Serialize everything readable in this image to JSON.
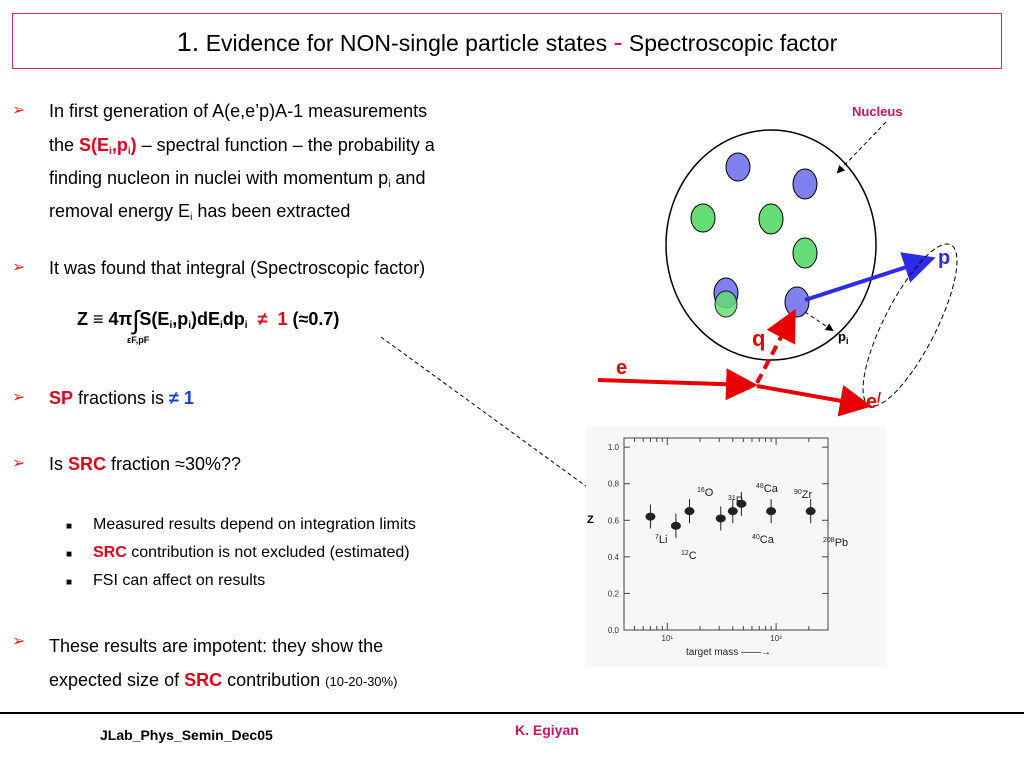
{
  "title": {
    "number": "1.",
    "part1": "Evidence for NON-single particle states",
    "dash": "-",
    "part2": "Spectroscopic factor"
  },
  "bullets": {
    "b1": {
      "line1": "In first generation of A(e,e’p)A-1 measurements",
      "line2_pre": "the ",
      "sfunc": "S(E",
      "sfunc_i1": "i",
      "sfunc_mid": ",p",
      "sfunc_i2": "i",
      "sfunc_end": ")",
      "line2_post": " – spectral function – the probability a",
      "line3_pre": "finding nucleon in nuclei with momentum p",
      "line3_sub": "i",
      "line3_post": " and",
      "line4_pre": "removal energy E",
      "line4_sub": "i",
      "line4_post": " has been extracted"
    },
    "b2": {
      "text": "It was found that integral (Spectroscopic factor)"
    },
    "formula": {
      "lhs": "Z ≡ 4π",
      "integrand": "S(E",
      "s1": "i",
      "mid": ",p",
      "s2": "i",
      "mid2": ")dE",
      "s3": "i",
      "dp": "dp",
      "s4": "i",
      "neq": "≠",
      "one": "1",
      "approx": "(≈0.7)",
      "limits": "εF,pF"
    },
    "b3": {
      "sp": "SP",
      "text": " fractions is ",
      "neq": "≠ 1"
    },
    "b4": {
      "pre": "Is ",
      "src": "SRC",
      "post": " fraction ≈30%??"
    },
    "sub1": "Measured results depend on integration limits",
    "sub2": {
      "src": "SRC",
      "post": " contribution is not excluded (estimated)"
    },
    "sub3": "FSI can affect on results",
    "b5": {
      "line1": "These results are impotent: they show the",
      "line2_pre": "expected size of ",
      "src": "SRC",
      "line2_post": " contribution ",
      "small": "(10-20-30%)"
    }
  },
  "diagram": {
    "nucleus_label": "Nucleus",
    "p_label": "p",
    "q_label": "q",
    "pi_label": "p",
    "pi_sub": "i",
    "e_label": "e",
    "eprime_label": "e",
    "eprime_mark": "/"
  },
  "chart_data": {
    "type": "scatter",
    "title": "",
    "xlabel": "target mass",
    "ylabel": "Z",
    "xscale": "log",
    "xlim": [
      4,
      300
    ],
    "ylim": [
      0.0,
      1.05
    ],
    "y_ticks": [
      "0.0",
      "0.2",
      "0.4",
      "0.6",
      "0.8",
      "1.0"
    ],
    "x_ticks": [
      "10¹",
      "10²"
    ],
    "points": [
      {
        "label": "7Li",
        "x": 7,
        "y": 0.62
      },
      {
        "label": "12C",
        "x": 12,
        "y": 0.57
      },
      {
        "label": "16O",
        "x": 16,
        "y": 0.65
      },
      {
        "label": "31P",
        "x": 31,
        "y": 0.61
      },
      {
        "label": "40Ca",
        "x": 40,
        "y": 0.65
      },
      {
        "label": "48Ca",
        "x": 48,
        "y": 0.69
      },
      {
        "label": "90Zr",
        "x": 90,
        "y": 0.65
      },
      {
        "label": "208Pb",
        "x": 208,
        "y": 0.65
      }
    ],
    "labels": [
      {
        "mass": "16",
        "el": "O"
      },
      {
        "mass": "31",
        "el": "P"
      },
      {
        "mass": "48",
        "el": "Ca"
      },
      {
        "mass": "90",
        "el": "Zr"
      },
      {
        "mass": "7",
        "el": "Li"
      },
      {
        "mass": "40",
        "el": "Ca"
      },
      {
        "mass": "208",
        "el": "Pb"
      },
      {
        "mass": "12",
        "el": "C"
      }
    ]
  },
  "footer": {
    "left": "JLab_Phys_Semin_Dec05",
    "right": "K. Egiyan"
  }
}
